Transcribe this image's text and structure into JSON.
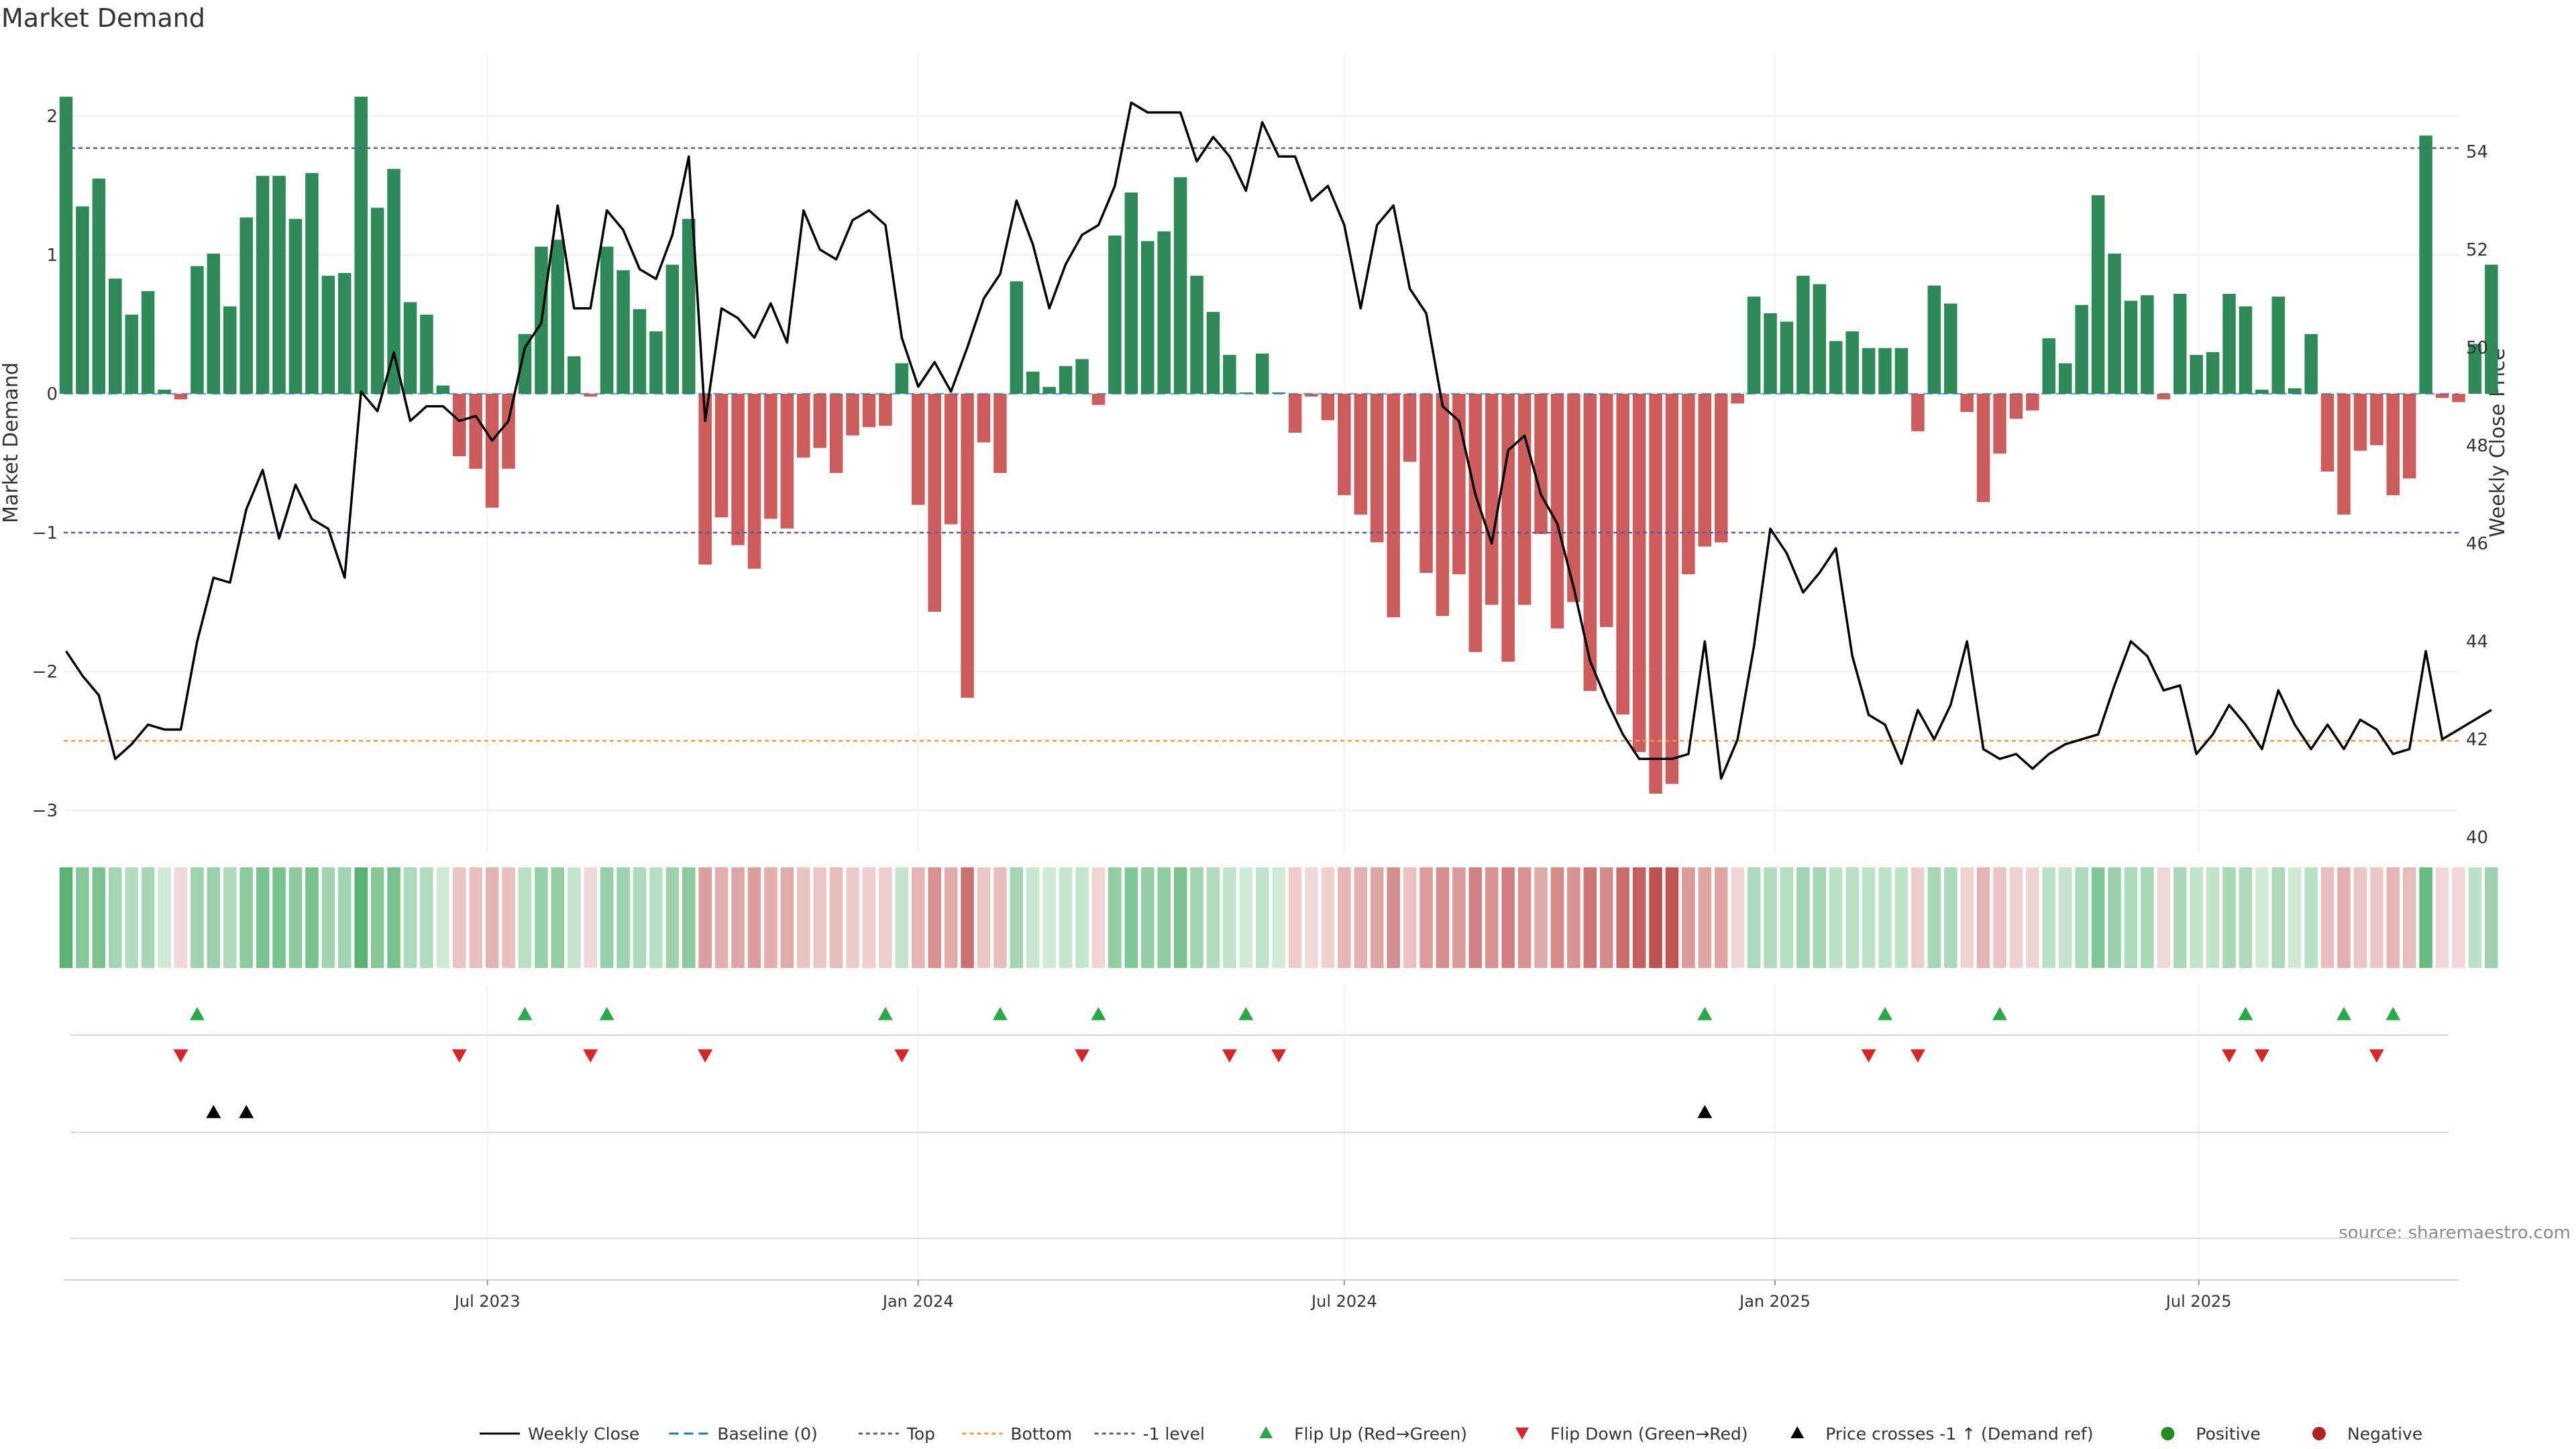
{
  "chart_data": {
    "type": "bar",
    "title": "Market Demand",
    "ylabel_left": "Market Demand",
    "ylabel_right": "Weekly Close Price",
    "source": "source: sharemaestro.com",
    "ylim_left": [
      -3.3,
      2.45
    ],
    "ylim_right": [
      39.7,
      56.0
    ],
    "yticks_left": [
      "2",
      "1",
      "0",
      "−1",
      "−2",
      "−3"
    ],
    "yticks_left_values": [
      2,
      1,
      0,
      -1,
      -2,
      -3
    ],
    "yticks_right": [
      "54",
      "52",
      "50",
      "48",
      "46",
      "44",
      "42",
      "40"
    ],
    "yticks_right_values": [
      54,
      52,
      50,
      48,
      46,
      44,
      42,
      40
    ],
    "x_start": "2023-01-01",
    "x_end": "2025-10-20",
    "xticks": [
      {
        "date": "2023-07-01",
        "label": "Jul 2023"
      },
      {
        "date": "2024-01-01",
        "label": "Jan 2024"
      },
      {
        "date": "2024-07-01",
        "label": "Jul 2024"
      },
      {
        "date": "2025-01-01",
        "label": "Jan 2025"
      },
      {
        "date": "2025-07-01",
        "label": "Jul 2025"
      }
    ],
    "reference_lines": [
      {
        "name": "Top",
        "axis": "left",
        "value": 1.77,
        "color": "#5b5b9a"
      },
      {
        "name": "-1 level",
        "axis": "left",
        "value": -1,
        "color": "#5b5b9a"
      },
      {
        "name": "Bottom",
        "axis": "left",
        "value": -2.5,
        "color": "#e0a040"
      }
    ],
    "colors": {
      "positive": "#2e8b57",
      "negative": "#cd5c5c",
      "price": "#000000",
      "flip_up": "#2aa84a",
      "flip_down": "#d62728",
      "cross": "#000000",
      "positive_dot": "#228b22",
      "negative_dot": "#b22222",
      "top": "#5b5b9a",
      "bottom": "#e0a040",
      "baseline": "#1f77b4"
    },
    "weeks_start": "2023-01-02",
    "demand": [
      2.14,
      1.35,
      1.55,
      0.83,
      0.57,
      0.74,
      0.03,
      -0.04,
      0.92,
      1.01,
      0.63,
      1.27,
      1.57,
      1.57,
      1.26,
      1.59,
      0.85,
      0.87,
      2.14,
      1.34,
      1.62,
      0.66,
      0.57,
      0.06,
      -0.45,
      -0.54,
      -0.82,
      -0.54,
      0.43,
      1.06,
      1.11,
      0.27,
      -0.02,
      1.06,
      0.89,
      0.61,
      0.45,
      0.93,
      1.26,
      -1.23,
      -0.89,
      -1.09,
      -1.26,
      -0.9,
      -0.97,
      -0.46,
      -0.39,
      -0.57,
      -0.3,
      -0.24,
      -0.23,
      0.22,
      -0.8,
      -1.57,
      -0.94,
      -2.19,
      -0.35,
      -0.57,
      0.81,
      0.16,
      0.05,
      0.2,
      0.25,
      -0.08,
      1.14,
      1.45,
      1.1,
      1.17,
      1.56,
      0.85,
      0.59,
      0.28,
      0.01,
      0.29,
      0.01,
      -0.28,
      -0.02,
      -0.19,
      -0.73,
      -0.87,
      -1.07,
      -1.61,
      -0.49,
      -1.29,
      -1.6,
      -1.3,
      -1.86,
      -1.52,
      -1.93,
      -1.52,
      -1.01,
      -1.69,
      -1.5,
      -2.14,
      -1.68,
      -2.31,
      -2.58,
      -2.88,
      -2.81,
      -1.3,
      -1.1,
      -1.07,
      -0.07,
      0.7,
      0.58,
      0.52,
      0.85,
      0.79,
      0.38,
      0.45,
      0.33,
      0.33,
      0.33,
      -0.27,
      0.78,
      0.65,
      -0.13,
      -0.78,
      -0.43,
      -0.18,
      -0.12,
      0.4,
      0.22,
      0.64,
      1.43,
      1.01,
      0.67,
      0.71,
      -0.04,
      0.72,
      0.28,
      0.3,
      0.72,
      0.63,
      0.03,
      0.7,
      0.04,
      0.43,
      -0.56,
      -0.87,
      -0.41,
      -0.37,
      -0.73,
      -0.61,
      1.86,
      -0.03,
      -0.06,
      0.36,
      0.93
    ],
    "price": [
      43.8,
      43.3,
      42.9,
      41.6,
      41.9,
      42.3,
      42.2,
      42.2,
      44.0,
      45.3,
      45.2,
      46.7,
      47.5,
      46.1,
      47.2,
      46.5,
      46.3,
      45.3,
      49.1,
      48.7,
      49.9,
      48.5,
      48.8,
      48.8,
      48.5,
      48.6,
      48.1,
      48.5,
      50.0,
      50.5,
      52.9,
      50.8,
      50.8,
      52.8,
      52.4,
      51.6,
      51.4,
      52.3,
      53.9,
      48.5,
      50.8,
      50.6,
      50.2,
      50.9,
      50.1,
      52.8,
      52.0,
      51.8,
      52.6,
      52.8,
      52.5,
      50.2,
      49.2,
      49.7,
      49.1,
      50.0,
      51.0,
      51.5,
      53.0,
      52.1,
      50.8,
      51.7,
      52.3,
      52.5,
      53.3,
      55.0,
      54.8,
      54.8,
      54.8,
      53.8,
      54.3,
      53.9,
      53.2,
      54.6,
      53.9,
      53.9,
      53.0,
      53.3,
      52.5,
      50.8,
      52.5,
      52.9,
      51.2,
      50.7,
      48.8,
      48.5,
      47.0,
      46.0,
      47.9,
      48.2,
      47.0,
      46.4,
      45.1,
      43.6,
      42.8,
      42.1,
      41.6,
      41.6,
      41.6,
      41.7,
      44.0,
      41.2,
      42.0,
      43.9,
      46.3,
      45.8,
      45.0,
      45.4,
      45.9,
      43.7,
      42.5,
      42.3,
      41.5,
      42.6,
      42.0,
      42.7,
      44.0,
      41.8,
      41.6,
      41.7,
      41.4,
      41.7,
      41.9,
      42.0,
      42.1,
      43.1,
      44.0,
      43.7,
      43.0,
      43.1,
      41.7,
      42.1,
      42.7,
      42.3,
      41.8,
      43.0,
      42.3,
      41.8,
      42.3,
      41.8,
      42.4,
      42.2,
      41.7,
      41.8,
      43.8,
      42.0,
      42.2,
      42.4,
      42.6
    ],
    "flip_up_weeks": [
      8,
      28,
      33,
      50,
      57,
      63,
      72,
      100,
      111,
      118,
      133,
      139,
      142
    ],
    "flip_down_weeks": [
      7,
      24,
      32,
      39,
      51,
      62,
      71,
      74,
      110,
      113,
      132,
      134,
      141
    ],
    "cross_up_weeks": [
      9,
      11,
      100
    ],
    "legend": [
      {
        "key": "price",
        "label": "Weekly Close"
      },
      {
        "key": "baseline",
        "label": "Baseline (0)"
      },
      {
        "key": "top",
        "label": "Top"
      },
      {
        "key": "bottom",
        "label": "Bottom"
      },
      {
        "key": "minus1",
        "label": "-1 level"
      },
      {
        "key": "flip_up",
        "label": "Flip Up (Red→Green)"
      },
      {
        "key": "flip_down",
        "label": "Flip Down (Green→Red)"
      },
      {
        "key": "cross",
        "label": "Price crosses -1 ↑ (Demand ref)"
      },
      {
        "key": "positive",
        "label": "Positive"
      },
      {
        "key": "negative",
        "label": "Negative"
      }
    ]
  }
}
